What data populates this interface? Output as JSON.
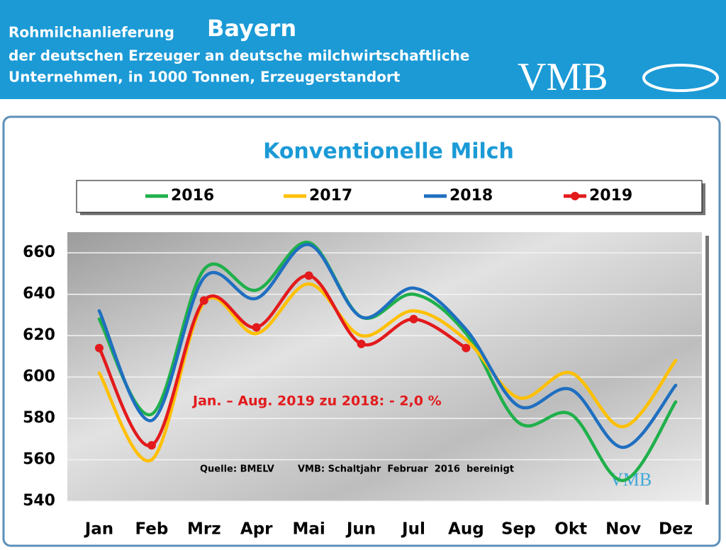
{
  "header": {
    "line1": "Rohmilchanlieferung",
    "region": "Bayern",
    "line2": "der deutschen Erzeuger an deutsche milchwirtschaftliche",
    "line3": "Unternehmen, in 1000 Tonnen, Erzeugerstandort",
    "logo": "VMB"
  },
  "chart_data": {
    "type": "line",
    "title": "Konventionelle Milch",
    "categories": [
      "Jan",
      "Feb",
      "Mrz",
      "Apr",
      "Mai",
      "Jun",
      "Jul",
      "Aug",
      "Sep",
      "Okt",
      "Nov",
      "Dez"
    ],
    "series": [
      {
        "name": "2016",
        "color": "#1fb04b",
        "values": [
          628,
          582,
          652,
          642,
          665,
          629,
          640,
          621,
          578,
          582,
          550,
          588
        ]
      },
      {
        "name": "2017",
        "color": "#ffc000",
        "values": [
          602,
          560,
          636,
          621,
          645,
          620,
          632,
          618,
          590,
          602,
          576,
          608
        ]
      },
      {
        "name": "2018",
        "color": "#1f6fc0",
        "values": [
          632,
          579,
          648,
          638,
          664,
          629,
          643,
          623,
          586,
          594,
          566,
          596
        ]
      },
      {
        "name": "2019",
        "color": "#e31a1c",
        "markers": true,
        "values": [
          614,
          567,
          637,
          624,
          649,
          616,
          628,
          614,
          null,
          null,
          null,
          null
        ]
      }
    ],
    "ylim": [
      540,
      670
    ],
    "yticks": [
      540,
      560,
      580,
      600,
      620,
      640,
      660
    ],
    "grid": true,
    "annotations": [
      "Jan. – Aug. 2019 zu 2018: - 2,0 %",
      "Quelle: BMELV",
      "VMB: Schaltjahr  Februar  2016  bereinigt"
    ]
  }
}
